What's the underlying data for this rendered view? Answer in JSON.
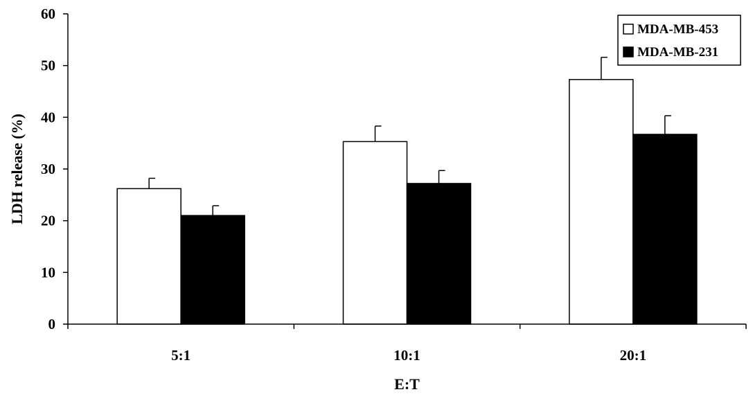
{
  "chart_data": {
    "type": "bar",
    "title": "",
    "xlabel": "E:T",
    "ylabel": "LDH release (%)",
    "categories": [
      "5:1",
      "10:1",
      "20:1"
    ],
    "series": [
      {
        "name": "MDA-MB-453",
        "values": [
          26.2,
          35.3,
          47.3
        ],
        "errors": [
          2.0,
          3.0,
          4.3
        ],
        "color": "#ffffff"
      },
      {
        "name": "MDA-MB-231",
        "values": [
          21.0,
          27.2,
          36.7
        ],
        "errors": [
          1.9,
          2.5,
          3.6
        ],
        "color": "#000000"
      }
    ],
    "ylim": [
      0,
      60
    ],
    "yticks": [
      "0",
      "10",
      "20",
      "30",
      "40",
      "50",
      "60"
    ],
    "grid": false,
    "legend_position": "top-right"
  }
}
